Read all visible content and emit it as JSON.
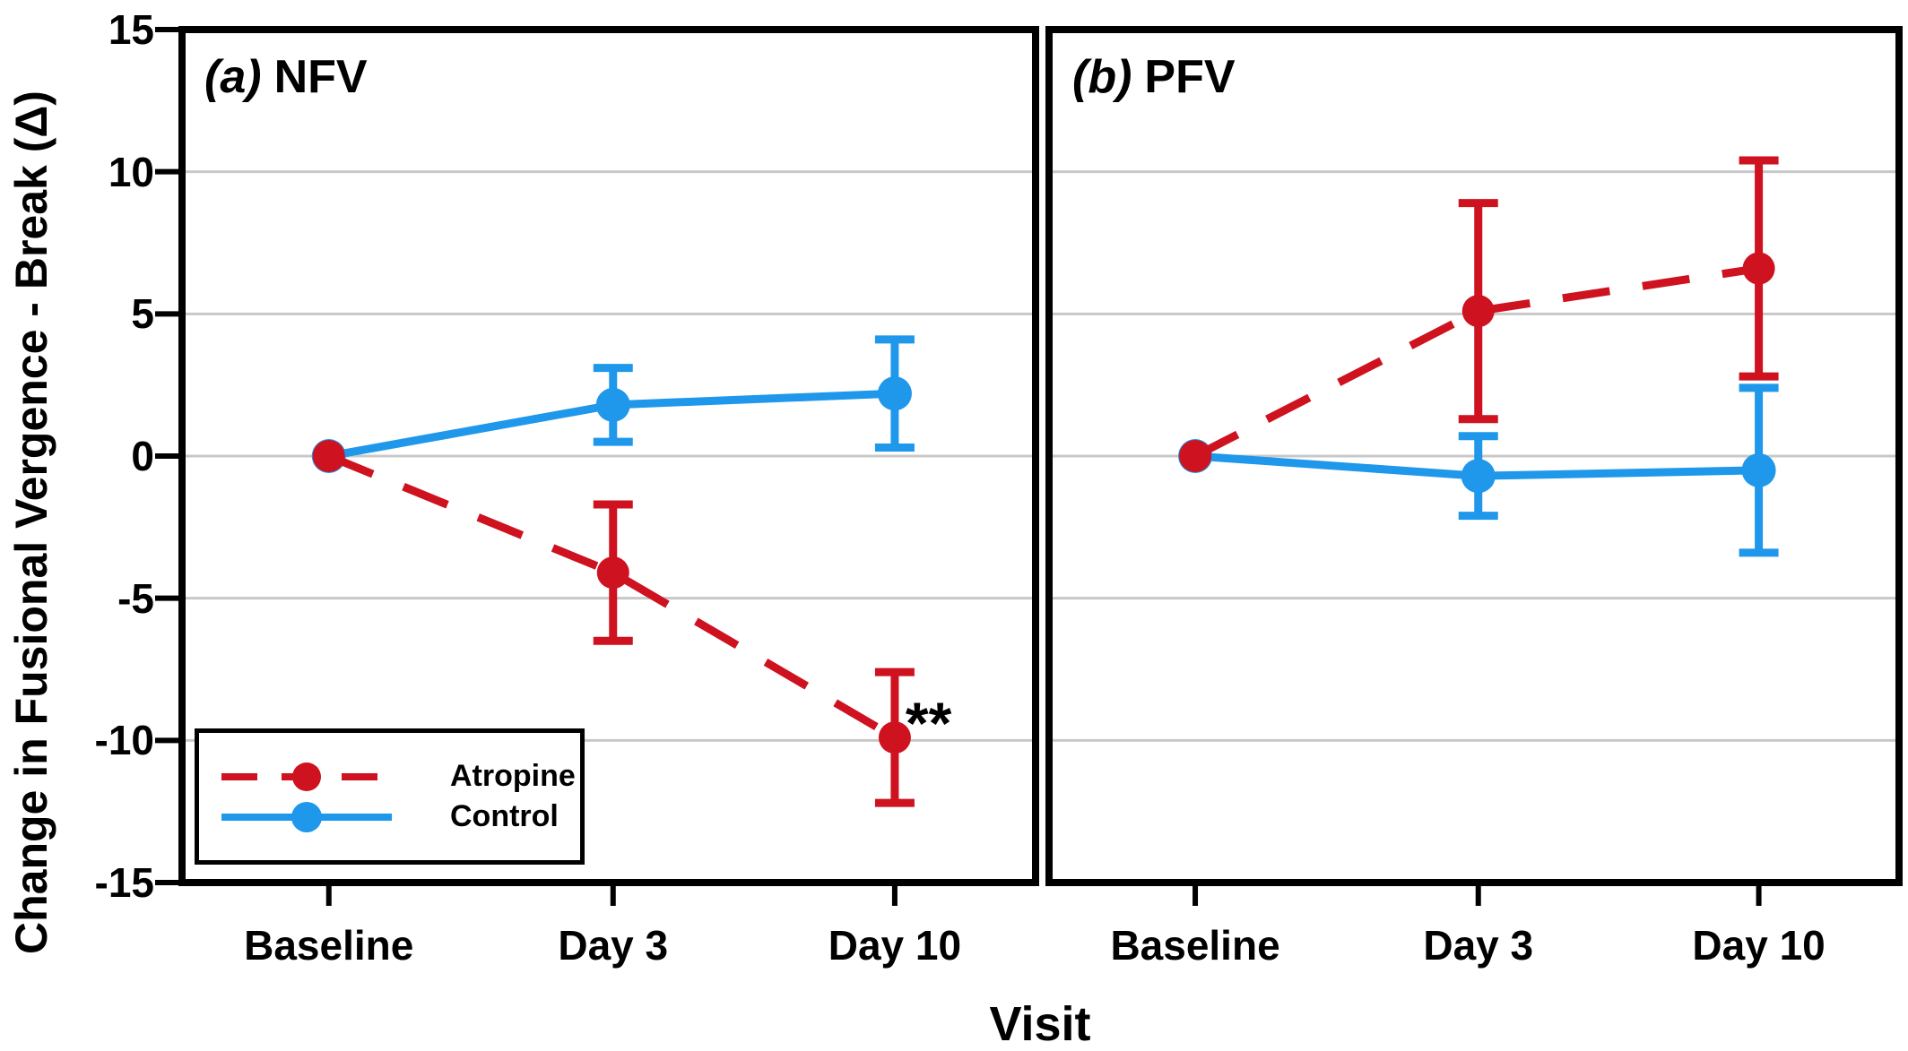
{
  "figure": {
    "y_axis_title": "Change in Fusional Vergence - Break (Δ)",
    "x_axis_title": "Visit",
    "background": "#FFFFFF",
    "colors": {
      "atropine": "#CE121F",
      "control": "#1F97EA",
      "gridline": "#C8C8C8",
      "frame": "#000000",
      "text": "#000000"
    }
  },
  "axes": {
    "x_categories": [
      "Baseline",
      "Day 3",
      "Day 10"
    ],
    "y_ticks": [
      "15",
      "10",
      "5",
      "0",
      "-5",
      "-10",
      "-15"
    ],
    "ylim": [
      -15,
      15
    ],
    "grid": "horizontal"
  },
  "legend": {
    "entries": [
      "Atropine",
      "Control"
    ],
    "position": "bottom-left inside panel (a)"
  },
  "chart_data": [
    {
      "type": "line",
      "panel_label": "(a)",
      "title": "NFV",
      "x": [
        "Baseline",
        "Day 3",
        "Day 10"
      ],
      "series": [
        {
          "name": "Atropine",
          "line_style": "dashed",
          "color_key": "atropine",
          "values": [
            0,
            -4.1,
            -9.9
          ],
          "errors": [
            0,
            2.4,
            2.3
          ]
        },
        {
          "name": "Control",
          "line_style": "solid",
          "color_key": "control",
          "values": [
            0,
            1.8,
            2.2
          ],
          "errors": [
            0,
            1.3,
            1.9
          ]
        }
      ],
      "annotations": [
        {
          "text": "**",
          "series": "Atropine",
          "x": "Day 10"
        }
      ]
    },
    {
      "type": "line",
      "panel_label": "(b)",
      "title": "PFV",
      "x": [
        "Baseline",
        "Day 3",
        "Day 10"
      ],
      "series": [
        {
          "name": "Atropine",
          "line_style": "dashed",
          "color_key": "atropine",
          "values": [
            0,
            5.1,
            6.6
          ],
          "errors": [
            0,
            3.8,
            3.8
          ]
        },
        {
          "name": "Control",
          "line_style": "solid",
          "color_key": "control",
          "values": [
            0,
            -0.7,
            -0.5
          ],
          "errors": [
            0,
            1.4,
            2.9
          ]
        }
      ],
      "annotations": []
    }
  ]
}
